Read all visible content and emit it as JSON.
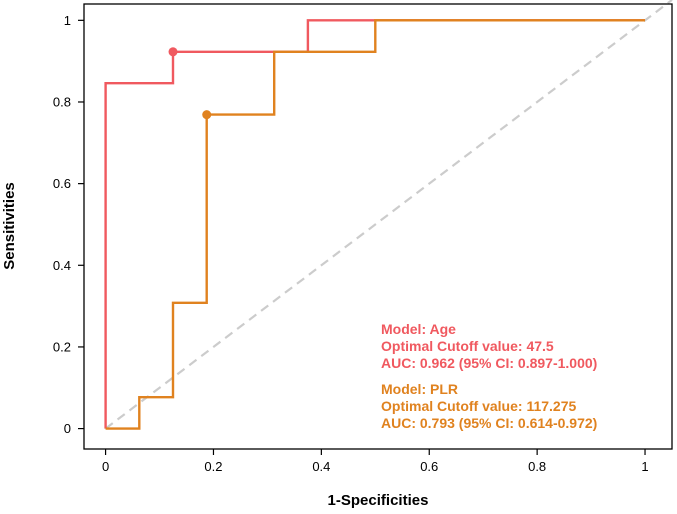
{
  "chart_data": {
    "type": "line",
    "title": "",
    "xlabel": "1-Specificities",
    "ylabel": "Sensitivities",
    "xlim": [
      -0.04,
      1.05
    ],
    "ylim": [
      -0.05,
      1.04
    ],
    "xticks": [
      0,
      0.2,
      0.4,
      0.6,
      0.8,
      1
    ],
    "yticks": [
      0,
      0.2,
      0.4,
      0.6,
      0.8,
      1
    ],
    "xtick_labels": [
      "0",
      "0.2",
      "0.4",
      "0.6",
      "0.8",
      "1"
    ],
    "ytick_labels": [
      "0",
      "0.2",
      "0.4",
      "0.6",
      "0.8",
      "1"
    ],
    "grid": false,
    "reference_line": {
      "from": [
        0,
        0
      ],
      "to": [
        1,
        1
      ],
      "style": "dashed",
      "color": "#cccccc"
    },
    "series": [
      {
        "name": "Age",
        "color": "#f0595f",
        "x": [
          0,
          0,
          0.125,
          0.125,
          0.375,
          0.375,
          1
        ],
        "y": [
          0,
          0.846,
          0.846,
          0.923,
          0.923,
          1,
          1
        ],
        "optimal_point": [
          0.125,
          0.923
        ],
        "annotation": [
          "Model: Age",
          "Optimal Cutoff value: 47.5",
          "AUC: 0.962 (95% CI: 0.897-1.000)"
        ]
      },
      {
        "name": "PLR",
        "color": "#e0821f",
        "x": [
          0,
          0.0625,
          0.0625,
          0.125,
          0.125,
          0.1875,
          0.1875,
          0.3125,
          0.3125,
          0.5,
          0.5,
          1
        ],
        "y": [
          0,
          0,
          0.077,
          0.077,
          0.308,
          0.308,
          0.769,
          0.769,
          0.923,
          0.923,
          1,
          1
        ],
        "optimal_point": [
          0.1875,
          0.769
        ],
        "annotation": [
          "Model: PLR",
          "Optimal Cutoff value: 117.275",
          "AUC: 0.793 (95% CI: 0.614-0.972)"
        ]
      }
    ]
  }
}
